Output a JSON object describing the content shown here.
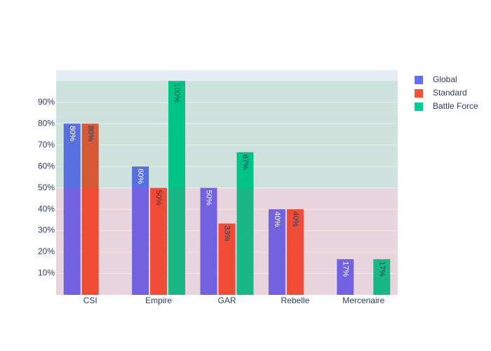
{
  "chart_data": {
    "type": "bar",
    "categories": [
      "CSI",
      "Empire",
      "GAR",
      "Rebelle",
      "Mercenaire"
    ],
    "series": [
      {
        "name": "Global",
        "color": "#636efa",
        "values": [
          80,
          60,
          50,
          40,
          16.67
        ],
        "value_labels": [
          "80%",
          "60%",
          "50%",
          "40%",
          "17%"
        ]
      },
      {
        "name": "Standard",
        "color": "#ef553b",
        "values": [
          80,
          50,
          33.33,
          40,
          null
        ],
        "value_labels": [
          "80%",
          "50%",
          "33%",
          "40%",
          null
        ]
      },
      {
        "name": "Battle Force",
        "color": "#00cc96",
        "values": [
          null,
          100,
          66.67,
          null,
          16.67
        ],
        "value_labels": [
          null,
          "100%",
          "67%",
          null,
          "17%"
        ]
      }
    ],
    "ylim": [
      0,
      105
    ],
    "yticks": [
      {
        "value": 10,
        "label": "10%"
      },
      {
        "value": 20,
        "label": "20%"
      },
      {
        "value": 30,
        "label": "30%"
      },
      {
        "value": 40,
        "label": "40%"
      },
      {
        "value": 50,
        "label": "50%"
      },
      {
        "value": 60,
        "label": "60%"
      },
      {
        "value": 70,
        "label": "70%"
      },
      {
        "value": 80,
        "label": "80%"
      },
      {
        "value": 90,
        "label": "90%"
      }
    ],
    "bands": [
      {
        "y0": 50,
        "y1": 100,
        "color": "rgba(0,128,0,0.1)"
      },
      {
        "y0": 0,
        "y1": 50,
        "color": "rgba(255,0,0,0.1)"
      }
    ],
    "grid": true,
    "legend": "right"
  }
}
